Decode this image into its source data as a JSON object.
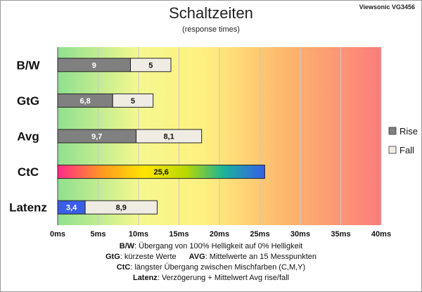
{
  "header": {
    "title": "Schaltzeiten",
    "subtitle": "(response times)",
    "monitor": "Viewsonic VG3456"
  },
  "chart_data": {
    "type": "bar",
    "stacked": true,
    "orientation": "horizontal",
    "categories": [
      "B/W",
      "GtG",
      "Avg",
      "CtC",
      "Latenz"
    ],
    "series": [
      {
        "name": "Rise",
        "values": [
          9,
          6.8,
          9.7,
          25.6,
          3.4
        ],
        "labels": [
          "9",
          "6,8",
          "9,7",
          "25,6",
          "3,4"
        ]
      },
      {
        "name": "Fall",
        "values": [
          5,
          5,
          8.1,
          null,
          8.9
        ],
        "labels": [
          "5",
          "5",
          "8,1",
          "",
          "8,9"
        ]
      }
    ],
    "x_ticks": [
      "0ms",
      "5ms",
      "10ms",
      "15ms",
      "20ms",
      "25ms",
      "30ms",
      "35ms",
      "40ms"
    ],
    "xlim": [
      0,
      40
    ],
    "legend_position": "right",
    "grid": true,
    "background": "gradient green-yellow-red",
    "colors": {
      "rise": "#808080",
      "fall": "#efece4",
      "latency_rise": "#3a5ee8"
    }
  },
  "notes": {
    "line1_key": "B/W",
    "line1_text": ":  Übergang von 100% Helligkeit auf 0% Helligkeit",
    "line2_key_a": "GtG",
    "line2_text_a": ": kürzeste  Werte",
    "line2_key_b": "AVG",
    "line2_text_b": ": Mittelwerte  an 15 Messpunkten",
    "line3_key": "CtC",
    "line3_text": ": längster Übergang  zwischen Mischfarben (C,M,Y)",
    "line4_key": "Latenz",
    "line4_text": ": Verzögerung  + Mittelwert Avg rise/fall"
  }
}
